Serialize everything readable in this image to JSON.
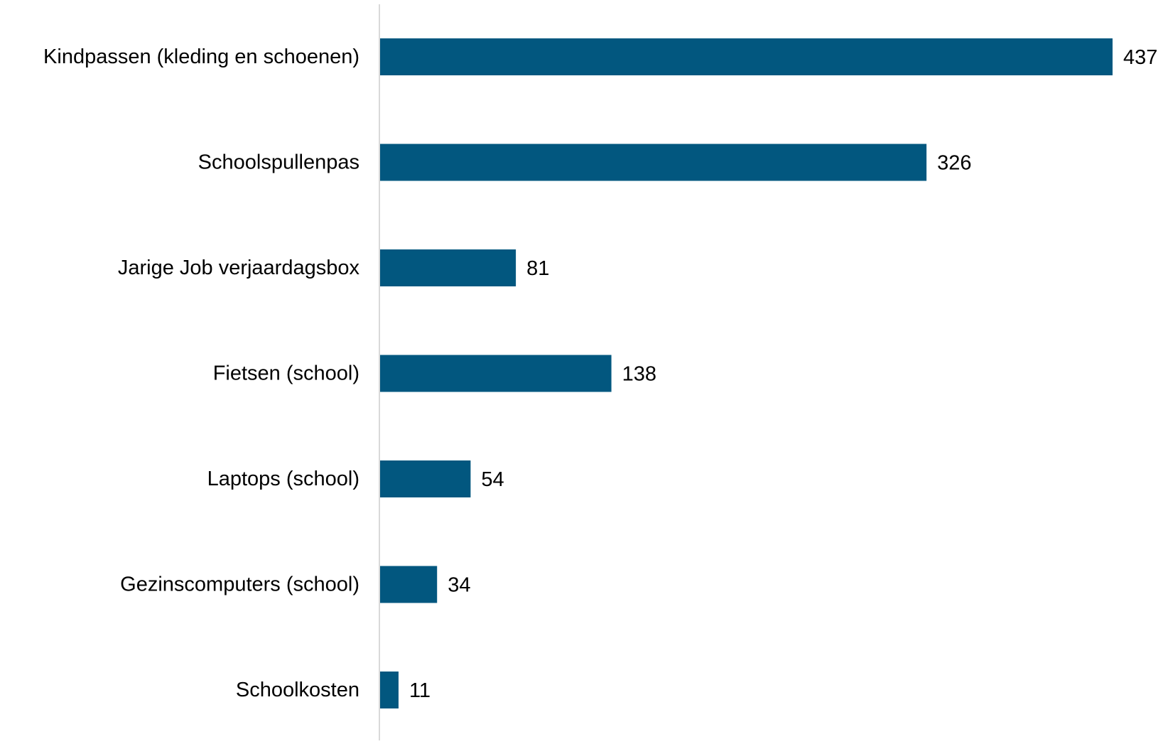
{
  "chart_data": {
    "type": "bar",
    "orientation": "horizontal",
    "categories": [
      "Kindpassen (kleding en schoenen)",
      "Schoolspullenpas",
      "Jarige Job verjaardagsbox",
      "Fietsen (school)",
      "Laptops (school)",
      "Gezinscomputers (school)",
      "Schoolkosten"
    ],
    "values": [
      437,
      326,
      81,
      138,
      54,
      34,
      11
    ],
    "data_labels": [
      "437",
      "326",
      "81",
      "138",
      "54",
      "34",
      "11"
    ],
    "title": "",
    "xlabel": "",
    "ylabel": "",
    "xlim": [
      0,
      437
    ],
    "grid": false,
    "legend": "none",
    "colors": {
      "bar": "#02577f",
      "axis": "#d9d9d9",
      "text": "#000000"
    }
  }
}
